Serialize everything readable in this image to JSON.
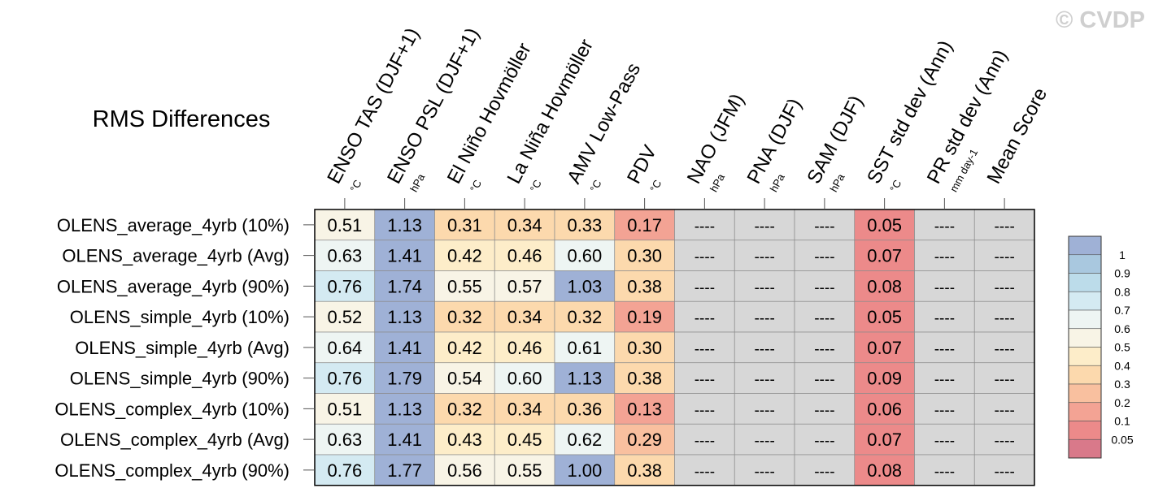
{
  "watermark": "© CVDP",
  "chart_data": {
    "type": "heatmap",
    "title": "RMS Differences",
    "columns": [
      {
        "label": "ENSO TAS (DJF+1)",
        "unit": "°C"
      },
      {
        "label": "ENSO PSL (DJF+1)",
        "unit": "hPa"
      },
      {
        "label": "El Niño Hovmöller",
        "unit": "°C"
      },
      {
        "label": "La Niña Hovmöller",
        "unit": "°C"
      },
      {
        "label": "AMV Low-Pass",
        "unit": "°C"
      },
      {
        "label": "PDV",
        "unit": "°C"
      },
      {
        "label": "NAO (JFM)",
        "unit": "hPa"
      },
      {
        "label": "PNA (DJF)",
        "unit": "hPa"
      },
      {
        "label": "SAM (DJF)",
        "unit": "hPa"
      },
      {
        "label": "SST std dev (Ann)",
        "unit": "°C"
      },
      {
        "label": "PR std dev (Ann)",
        "unit": "mm day-1"
      },
      {
        "label": "Mean Score",
        "unit": ""
      }
    ],
    "rows": [
      "OLENS_average_4yrb (10%)",
      "OLENS_average_4yrb (Avg)",
      "OLENS_average_4yrb (90%)",
      "OLENS_simple_4yrb (10%)",
      "OLENS_simple_4yrb (Avg)",
      "OLENS_simple_4yrb (90%)",
      "OLENS_complex_4yrb (10%)",
      "OLENS_complex_4yrb (Avg)",
      "OLENS_complex_4yrb (90%)"
    ],
    "values": [
      [
        "0.51",
        "1.13",
        "0.31",
        "0.34",
        "0.33",
        "0.17",
        "----",
        "----",
        "----",
        "0.05",
        "----",
        "----"
      ],
      [
        "0.63",
        "1.41",
        "0.42",
        "0.46",
        "0.60",
        "0.30",
        "----",
        "----",
        "----",
        "0.07",
        "----",
        "----"
      ],
      [
        "0.76",
        "1.74",
        "0.55",
        "0.57",
        "1.03",
        "0.38",
        "----",
        "----",
        "----",
        "0.08",
        "----",
        "----"
      ],
      [
        "0.52",
        "1.13",
        "0.32",
        "0.34",
        "0.32",
        "0.19",
        "----",
        "----",
        "----",
        "0.05",
        "----",
        "----"
      ],
      [
        "0.64",
        "1.41",
        "0.42",
        "0.46",
        "0.61",
        "0.30",
        "----",
        "----",
        "----",
        "0.07",
        "----",
        "----"
      ],
      [
        "0.76",
        "1.79",
        "0.54",
        "0.60",
        "1.13",
        "0.38",
        "----",
        "----",
        "----",
        "0.09",
        "----",
        "----"
      ],
      [
        "0.51",
        "1.13",
        "0.32",
        "0.34",
        "0.36",
        "0.13",
        "----",
        "----",
        "----",
        "0.06",
        "----",
        "----"
      ],
      [
        "0.63",
        "1.41",
        "0.43",
        "0.45",
        "0.62",
        "0.29",
        "----",
        "----",
        "----",
        "0.07",
        "----",
        "----"
      ],
      [
        "0.76",
        "1.77",
        "0.56",
        "0.55",
        "1.00",
        "0.38",
        "----",
        "----",
        "----",
        "0.08",
        "----",
        "----"
      ]
    ],
    "missing_color": "#d7d7d7",
    "colorbar": {
      "labels": [
        "1",
        "0.9",
        "0.8",
        "0.7",
        "0.6",
        "0.5",
        "0.4",
        "0.3",
        "0.2",
        "0.1",
        "0.05"
      ],
      "colors": [
        "#9fb1d6",
        "#a9c8df",
        "#bcdcea",
        "#d4eaf2",
        "#eef5f3",
        "#f8f4e6",
        "#fdedc9",
        "#fcd9ad",
        "#f9c09f",
        "#f3a394",
        "#ec8a8a",
        "#d9798a"
      ],
      "bin_edges": [
        1.0,
        0.9,
        0.8,
        0.7,
        0.6,
        0.5,
        0.4,
        0.3,
        0.2,
        0.1,
        0.05
      ]
    }
  }
}
